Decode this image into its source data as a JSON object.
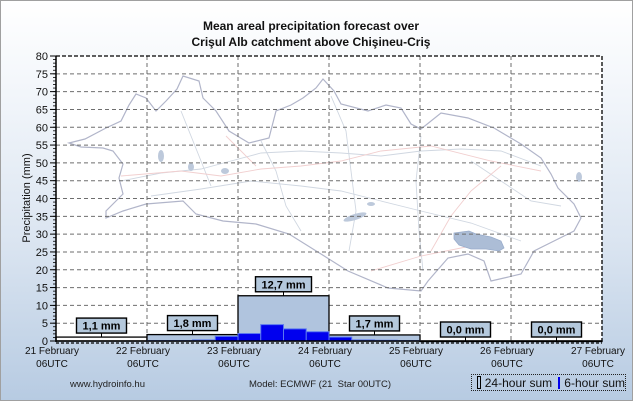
{
  "chart_data": {
    "type": "bar",
    "title_lines": [
      "Mean areal precipitation forecast over",
      "Crişul Alb catchment above Chişineu-Criş"
    ],
    "ylabel": "Precipitation (mm)",
    "xlabel": "",
    "ylim": [
      0,
      80
    ],
    "yticks": [
      0,
      5,
      10,
      15,
      20,
      25,
      30,
      35,
      40,
      45,
      50,
      55,
      60,
      65,
      70,
      75,
      80
    ],
    "x_ticks": [
      {
        "date": "21 February",
        "time": "06UTC"
      },
      {
        "date": "22 February",
        "time": "06UTC"
      },
      {
        "date": "23 February",
        "time": "06UTC"
      },
      {
        "date": "24 February",
        "time": "06UTC"
      },
      {
        "date": "25 February",
        "time": "06UTC"
      },
      {
        "date": "26 February",
        "time": "06UTC"
      },
      {
        "date": "27 February",
        "time": "06UTC"
      }
    ],
    "grid": true,
    "legend_position": "bottom-right",
    "series": [
      {
        "name": "24-hour sum",
        "period_hours": 24,
        "values": [
          1.1,
          1.8,
          12.7,
          1.7,
          0.0,
          0.0
        ],
        "value_labels": [
          "1,1 mm",
          "1,8 mm",
          "12,7 mm",
          "1,7 mm",
          "0,0 mm",
          "0,0 mm"
        ]
      },
      {
        "name": "6-hour sum",
        "period_hours": 6,
        "values": [
          null,
          null,
          null,
          null,
          0.1,
          0.1,
          0.3,
          1.3,
          2.1,
          4.6,
          3.4,
          2.6,
          1.1,
          0.3,
          0.2,
          0.1,
          0.0,
          0.0,
          0.0,
          0.0,
          0.0,
          0.0,
          0.0,
          0.0
        ]
      }
    ]
  },
  "footer": {
    "website": "www.hydroinfo.hu",
    "model": "Model: ECMWF (21  Star 00UTC)"
  },
  "legend": {
    "icons": [
      "outline-box-icon",
      "filled-box-icon"
    ]
  },
  "colors": {
    "bar_24h": "#b0c4de",
    "bar_6h": "#0000ee",
    "bar_6h_edge": "#5a78f0",
    "label_box": "#b4c8dc",
    "grid": "#6e6e6e",
    "catchment": "#a4b6d2"
  }
}
